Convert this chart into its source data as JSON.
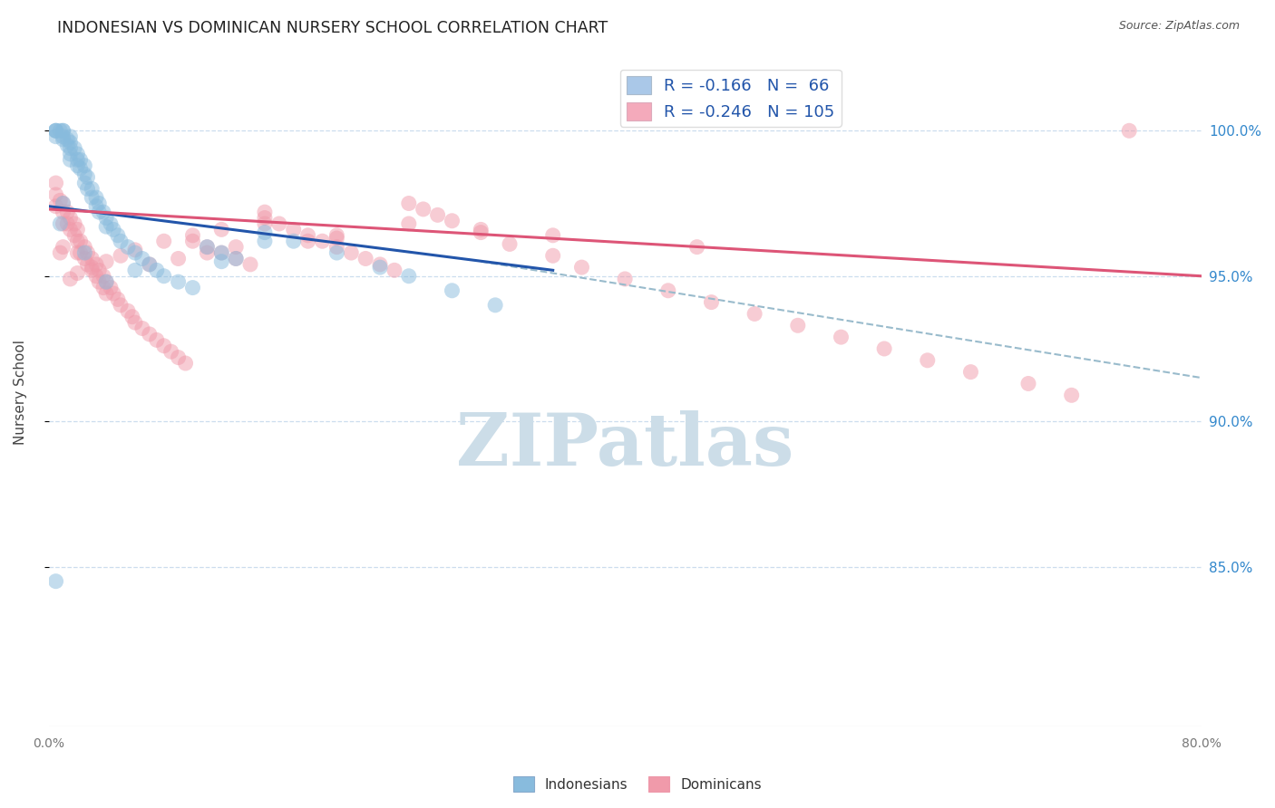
{
  "title": "INDONESIAN VS DOMINICAN NURSERY SCHOOL CORRELATION CHART",
  "source": "Source: ZipAtlas.com",
  "ylabel": "Nursery School",
  "ytick_values": [
    1.0,
    0.95,
    0.9,
    0.85
  ],
  "ytick_labels": [
    "100.0%",
    "95.0%",
    "90.0%",
    "85.0%"
  ],
  "xlim": [
    0.0,
    0.8
  ],
  "ylim": [
    0.795,
    1.025
  ],
  "legend_label_blue": "R = -0.166   N =  66",
  "legend_label_pink": "R = -0.246   N = 105",
  "legend_color_blue": "#aac8e8",
  "legend_color_pink": "#f4aabb",
  "blue_scatter_color": "#88bbdd",
  "pink_scatter_color": "#f09aaa",
  "blue_line_color": "#2255aa",
  "pink_line_color": "#dd5577",
  "dashed_line_color": "#99bbcc",
  "watermark_text": "ZIPatlas",
  "watermark_color": "#ccdde8",
  "grid_color": "#ccddee",
  "title_color": "#222222",
  "ylabel_color": "#444444",
  "right_tick_color": "#3388cc",
  "source_color": "#555555",
  "blue_line_x": [
    0.0,
    0.35
  ],
  "blue_line_y": [
    0.974,
    0.952
  ],
  "pink_line_x": [
    0.0,
    0.8
  ],
  "pink_line_y": [
    0.973,
    0.95
  ],
  "dash_line_x": [
    0.3,
    0.8
  ],
  "dash_line_y": [
    0.955,
    0.915
  ],
  "indo_x": [
    0.005,
    0.005,
    0.005,
    0.005,
    0.008,
    0.01,
    0.01,
    0.01,
    0.01,
    0.013,
    0.013,
    0.015,
    0.015,
    0.015,
    0.015,
    0.018,
    0.02,
    0.02,
    0.02,
    0.022,
    0.022,
    0.025,
    0.025,
    0.025,
    0.027,
    0.027,
    0.03,
    0.03,
    0.033,
    0.033,
    0.035,
    0.035,
    0.038,
    0.04,
    0.04,
    0.043,
    0.045,
    0.048,
    0.05,
    0.055,
    0.06,
    0.065,
    0.07,
    0.075,
    0.08,
    0.09,
    0.1,
    0.11,
    0.12,
    0.13,
    0.15,
    0.17,
    0.2,
    0.23,
    0.25,
    0.28,
    0.31,
    0.15,
    0.12,
    0.06,
    0.04,
    0.025,
    0.015,
    0.01,
    0.008,
    0.005
  ],
  "indo_y": [
    1.0,
    1.0,
    1.0,
    0.998,
    1.0,
    1.0,
    1.0,
    0.998,
    0.997,
    0.997,
    0.995,
    0.998,
    0.996,
    0.994,
    0.992,
    0.994,
    0.992,
    0.99,
    0.988,
    0.99,
    0.987,
    0.988,
    0.985,
    0.982,
    0.984,
    0.98,
    0.98,
    0.977,
    0.977,
    0.974,
    0.975,
    0.972,
    0.972,
    0.97,
    0.967,
    0.968,
    0.966,
    0.964,
    0.962,
    0.96,
    0.958,
    0.956,
    0.954,
    0.952,
    0.95,
    0.948,
    0.946,
    0.96,
    0.958,
    0.956,
    0.965,
    0.962,
    0.958,
    0.953,
    0.95,
    0.945,
    0.94,
    0.962,
    0.955,
    0.952,
    0.948,
    0.958,
    0.99,
    0.975,
    0.968,
    0.845
  ],
  "dom_x": [
    0.005,
    0.005,
    0.005,
    0.008,
    0.01,
    0.01,
    0.01,
    0.013,
    0.013,
    0.015,
    0.015,
    0.018,
    0.018,
    0.02,
    0.02,
    0.02,
    0.022,
    0.022,
    0.025,
    0.025,
    0.027,
    0.027,
    0.03,
    0.03,
    0.033,
    0.033,
    0.035,
    0.035,
    0.038,
    0.038,
    0.04,
    0.04,
    0.043,
    0.045,
    0.048,
    0.05,
    0.055,
    0.058,
    0.06,
    0.065,
    0.07,
    0.075,
    0.08,
    0.085,
    0.09,
    0.095,
    0.1,
    0.11,
    0.12,
    0.13,
    0.14,
    0.15,
    0.16,
    0.17,
    0.18,
    0.19,
    0.2,
    0.21,
    0.22,
    0.23,
    0.24,
    0.25,
    0.26,
    0.27,
    0.28,
    0.3,
    0.32,
    0.35,
    0.37,
    0.4,
    0.43,
    0.46,
    0.49,
    0.52,
    0.55,
    0.58,
    0.61,
    0.64,
    0.68,
    0.71,
    0.75,
    0.2,
    0.15,
    0.12,
    0.1,
    0.08,
    0.06,
    0.05,
    0.04,
    0.03,
    0.02,
    0.015,
    0.01,
    0.008,
    0.15,
    0.25,
    0.35,
    0.45,
    0.3,
    0.2,
    0.18,
    0.13,
    0.11,
    0.09,
    0.07
  ],
  "dom_y": [
    0.982,
    0.978,
    0.974,
    0.976,
    0.975,
    0.972,
    0.968,
    0.972,
    0.968,
    0.97,
    0.966,
    0.968,
    0.964,
    0.966,
    0.962,
    0.958,
    0.962,
    0.958,
    0.96,
    0.956,
    0.958,
    0.954,
    0.956,
    0.952,
    0.954,
    0.95,
    0.952,
    0.948,
    0.95,
    0.946,
    0.948,
    0.944,
    0.946,
    0.944,
    0.942,
    0.94,
    0.938,
    0.936,
    0.934,
    0.932,
    0.93,
    0.928,
    0.926,
    0.924,
    0.922,
    0.92,
    0.962,
    0.96,
    0.958,
    0.956,
    0.954,
    0.97,
    0.968,
    0.966,
    0.964,
    0.962,
    0.96,
    0.958,
    0.956,
    0.954,
    0.952,
    0.975,
    0.973,
    0.971,
    0.969,
    0.965,
    0.961,
    0.957,
    0.953,
    0.949,
    0.945,
    0.941,
    0.937,
    0.933,
    0.929,
    0.925,
    0.921,
    0.917,
    0.913,
    0.909,
    1.0,
    0.963,
    0.968,
    0.966,
    0.964,
    0.962,
    0.959,
    0.957,
    0.955,
    0.953,
    0.951,
    0.949,
    0.96,
    0.958,
    0.972,
    0.968,
    0.964,
    0.96,
    0.966,
    0.964,
    0.962,
    0.96,
    0.958,
    0.956,
    0.954
  ]
}
